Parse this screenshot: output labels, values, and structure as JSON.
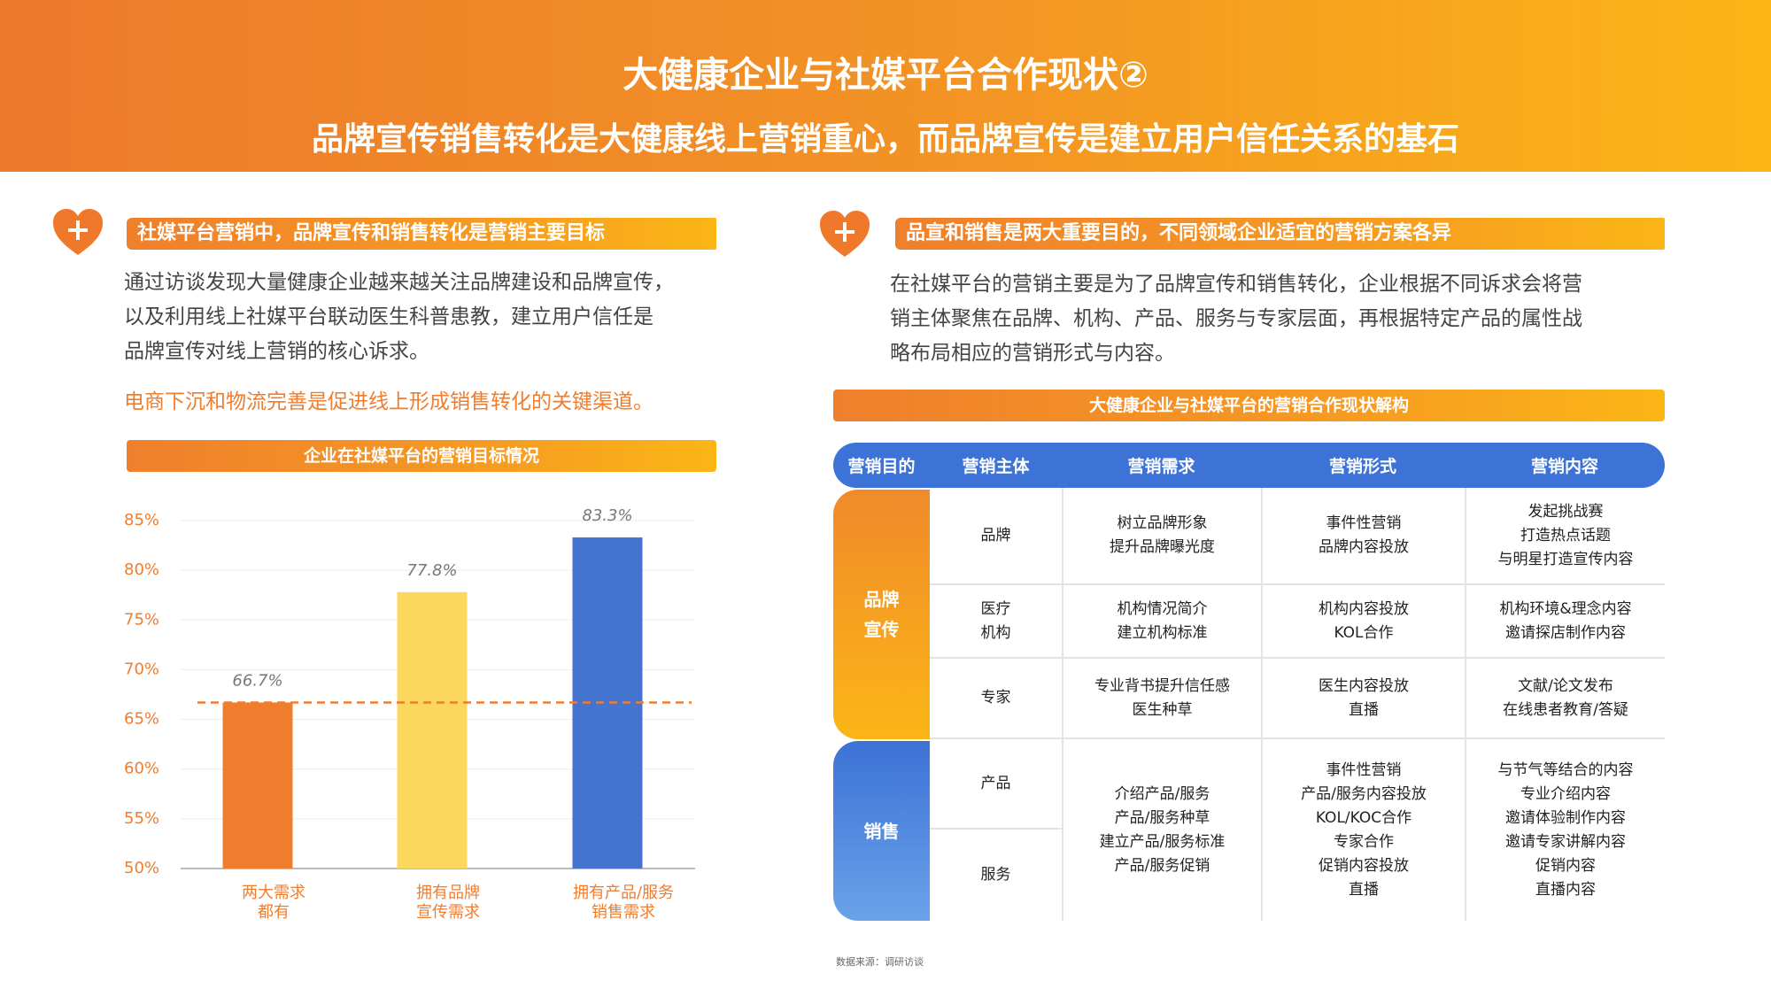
{
  "header": {
    "title": "大健康企业与社媒平台合作现状②",
    "subtitle": "品牌宣传销售转化是大健康线上营销重心，而品牌宣传是建立用户信任关系的基石"
  },
  "left": {
    "heading": "社媒平台营销中，品牌宣传和销售转化是营销主要目标",
    "paragraph": "通过访谈发现大量健康企业越来越关注品牌建设和品牌宣传，\n以及利用线上社媒平台联动医生科普患教，建立用户信任是\n品牌宣传对线上营销的核心诉求。",
    "highlight": "电商下沉和物流完善是促进线上形成销售转化的关键渠道。"
  },
  "chart_data": {
    "type": "bar",
    "title": "企业在社媒平台的营销目标情况",
    "categories": [
      "两大需求\n都有",
      "拥有品牌\n宣传需求",
      "拥有产品/服务\n销售需求"
    ],
    "values": [
      66.7,
      77.8,
      83.3
    ],
    "value_labels": [
      "66.7%",
      "77.8%",
      "83.3%"
    ],
    "colors": [
      "#ef7d2e",
      "#fbd75e",
      "#4574d0"
    ],
    "ylim": [
      50,
      87
    ],
    "yticks": [
      {
        "value": 50,
        "label": "50%"
      },
      {
        "value": 55,
        "label": "55%"
      },
      {
        "value": 60,
        "label": "60%"
      },
      {
        "value": 65,
        "label": "65%"
      },
      {
        "value": 70,
        "label": "70%"
      },
      {
        "value": 75,
        "label": "75%"
      },
      {
        "value": 80,
        "label": "80%"
      },
      {
        "value": 85,
        "label": "85%"
      }
    ],
    "grid": true,
    "reference_line_color": "#ef7d2e"
  },
  "right": {
    "heading": "品宣和销售是两大重要目的，不同领域企业适宜的营销方案各异",
    "paragraph": "在社媒平台的营销主要是为了品牌宣传和销售转化，企业根据不同诉求会将营\n销主体聚焦在品牌、机构、产品、服务与专家层面，再根据特定产品的属性战\n略布局相应的营销形式与内容。"
  },
  "table": {
    "title": "大健康企业与社媒平台的营销合作现状解构",
    "headers": [
      "营销目的",
      "营销主体",
      "营销需求",
      "营销形式",
      "营销内容"
    ],
    "groups": [
      {
        "purpose": "品牌\n宣传",
        "rows": [
          {
            "subject": "品牌",
            "need": "树立品牌形象\n提升品牌曝光度",
            "form": "事件性营销\n品牌内容投放",
            "content": "发起挑战赛\n打造热点话题\n与明星打造宣传内容"
          },
          {
            "subject": "医疗\n机构",
            "need": "机构情况简介\n建立机构标准",
            "form": "机构内容投放\nKOL合作",
            "content": "机构环境&理念内容\n邀请探店制作内容"
          },
          {
            "subject": "专家",
            "need": "专业背书提升信任感\n医生种草",
            "form": "医生内容投放\n直播",
            "content": "文献/论文发布\n在线患者教育/答疑"
          }
        ]
      },
      {
        "purpose": "销售",
        "subjects": [
          "产品",
          "服务"
        ],
        "need": "介绍产品/服务\n产品/服务种草\n建立产品/服务标准\n产品/服务促销",
        "form": "事件性营销\n产品/服务内容投放\nKOL/KOC合作\n专家合作\n促销内容投放\n直播",
        "content": "与节气等结合的内容\n专业介绍内容\n邀请体验制作内容\n邀请专家讲解内容\n促销内容\n直播内容"
      }
    ]
  },
  "source": "数据来源：调研访谈"
}
